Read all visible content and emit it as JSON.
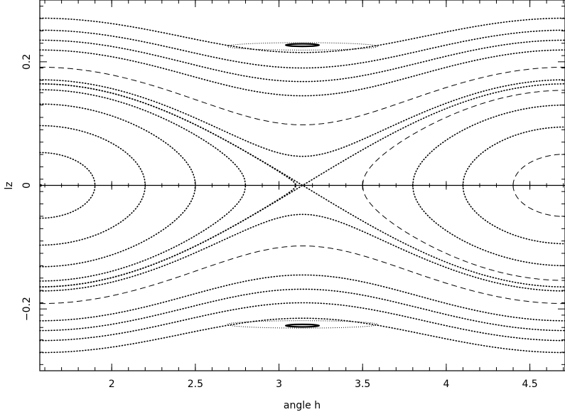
{
  "chart_data": {
    "type": "scatter",
    "title": "",
    "xlabel": "angle h",
    "ylabel": "lz",
    "xlim": [
      1.57,
      4.71
    ],
    "ylim": [
      -0.3,
      0.3
    ],
    "x_ticks": [
      2,
      2.5,
      3,
      3.5,
      4,
      4.5
    ],
    "x_tick_labels": [
      "2",
      "2.5",
      "3",
      "3.5",
      "4",
      "4.5"
    ],
    "y_ticks": [
      -0.2,
      0,
      0.2
    ],
    "y_tick_labels": [
      "−0.2",
      "0",
      "0.2"
    ],
    "zero_line": true,
    "grid": false,
    "legend": "none",
    "color": "#000000",
    "separatrix_center": [
      3.1416,
      0
    ],
    "libration_centers": [
      [
        1.5708,
        0
      ],
      [
        4.7124,
        0
      ]
    ],
    "libration_orbits": [
      {
        "turning_h": 1.58,
        "style": "solid"
      },
      {
        "turning_h": 1.9,
        "style": "dotted"
      },
      {
        "turning_h": 2.2,
        "style": "dotted"
      },
      {
        "turning_h": 2.5,
        "style": "dotted"
      },
      {
        "turning_h": 2.8,
        "style": "dotted"
      },
      {
        "turning_h": 3.1,
        "style": "dotted"
      },
      {
        "turning_h": 3.5,
        "style": "dashed"
      },
      {
        "turning_h": 3.8,
        "style": "dotted"
      },
      {
        "turning_h": 4.1,
        "style": "dotted"
      },
      {
        "turning_h": 4.4,
        "style": "dashed"
      }
    ],
    "circulation_orbits": [
      {
        "lz_at_center": 0.047,
        "style": "dotted"
      },
      {
        "lz_at_center": 0.098,
        "style": "dashed"
      },
      {
        "lz_at_center": 0.145,
        "style": "dotted"
      },
      {
        "lz_at_center": 0.168,
        "style": "dotted"
      },
      {
        "lz_at_center": 0.19,
        "style": "dotted"
      },
      {
        "lz_at_center": 0.215,
        "style": "dotted"
      }
    ],
    "islands": [
      {
        "center": [
          3.14,
          0.225
        ],
        "half_width": 0.45,
        "half_height": 0.006
      },
      {
        "center": [
          3.14,
          0.227
        ],
        "half_width": 0.1,
        "half_height": 0.002
      },
      {
        "center": [
          3.14,
          -0.225
        ],
        "half_width": 0.45,
        "half_height": 0.006
      },
      {
        "center": [
          3.14,
          -0.227
        ],
        "half_width": 0.1,
        "half_height": 0.002
      }
    ]
  }
}
